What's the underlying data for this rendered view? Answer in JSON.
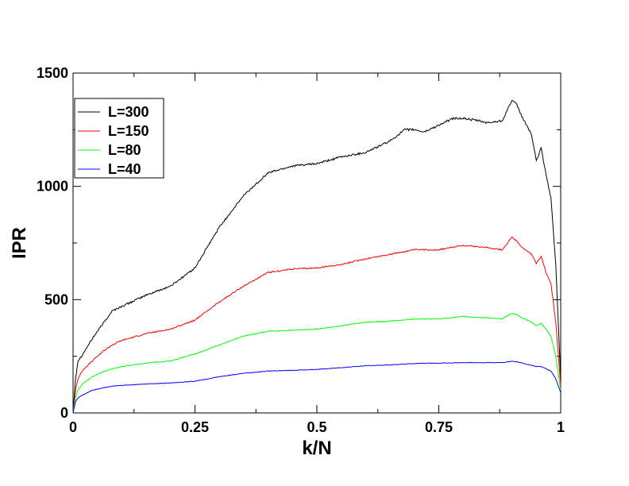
{
  "chart_data": {
    "type": "line",
    "xlabel": "k/N",
    "ylabel": "IPR",
    "xlim": [
      0,
      1
    ],
    "ylim": [
      0,
      1500
    ],
    "x_ticks": [
      0,
      0.25,
      0.5,
      0.75,
      1
    ],
    "x_tick_labels": [
      "0",
      "0.25",
      "0.5",
      "0.75",
      "1"
    ],
    "y_ticks": [
      0,
      500,
      1000,
      1500
    ],
    "y_tick_labels": [
      "0",
      "500",
      "1000",
      "1500"
    ],
    "grid": false,
    "legend_position": "top-left",
    "series": [
      {
        "name": "L=300",
        "color": "#000000",
        "x": [
          0,
          0.005,
          0.01,
          0.02,
          0.04,
          0.06,
          0.08,
          0.1,
          0.15,
          0.2,
          0.25,
          0.3,
          0.35,
          0.4,
          0.45,
          0.5,
          0.55,
          0.6,
          0.65,
          0.68,
          0.7,
          0.72,
          0.75,
          0.78,
          0.8,
          0.83,
          0.85,
          0.88,
          0.9,
          0.91,
          0.92,
          0.94,
          0.95,
          0.96,
          0.97,
          0.98,
          0.99,
          1.0
        ],
        "y": [
          0,
          150,
          230,
          260,
          330,
          390,
          450,
          470,
          520,
          560,
          640,
          820,
          960,
          1060,
          1090,
          1100,
          1130,
          1150,
          1200,
          1250,
          1250,
          1240,
          1270,
          1300,
          1300,
          1290,
          1280,
          1290,
          1380,
          1360,
          1310,
          1230,
          1110,
          1170,
          1050,
          950,
          650,
          150
        ]
      },
      {
        "name": "L=150",
        "color": "#ff0000",
        "x": [
          0,
          0.005,
          0.01,
          0.02,
          0.04,
          0.06,
          0.08,
          0.1,
          0.15,
          0.2,
          0.25,
          0.3,
          0.35,
          0.4,
          0.45,
          0.5,
          0.55,
          0.6,
          0.65,
          0.7,
          0.75,
          0.8,
          0.85,
          0.88,
          0.9,
          0.91,
          0.92,
          0.94,
          0.95,
          0.96,
          0.97,
          0.98,
          0.99,
          1.0
        ],
        "y": [
          0,
          100,
          150,
          190,
          230,
          270,
          300,
          320,
          350,
          370,
          410,
          490,
          560,
          620,
          635,
          640,
          655,
          680,
          700,
          720,
          720,
          740,
          730,
          720,
          775,
          760,
          730,
          700,
          660,
          690,
          620,
          570,
          400,
          120
        ]
      },
      {
        "name": "L=80",
        "color": "#00ff00",
        "x": [
          0,
          0.005,
          0.01,
          0.02,
          0.04,
          0.06,
          0.08,
          0.1,
          0.15,
          0.2,
          0.25,
          0.3,
          0.35,
          0.4,
          0.45,
          0.5,
          0.55,
          0.6,
          0.65,
          0.7,
          0.75,
          0.8,
          0.85,
          0.88,
          0.9,
          0.91,
          0.92,
          0.94,
          0.95,
          0.96,
          0.97,
          0.98,
          0.99,
          1.0
        ],
        "y": [
          0,
          70,
          100,
          130,
          160,
          180,
          195,
          205,
          220,
          230,
          260,
          300,
          340,
          360,
          365,
          370,
          385,
          400,
          405,
          415,
          415,
          425,
          420,
          415,
          440,
          435,
          420,
          400,
          385,
          395,
          370,
          340,
          250,
          100
        ]
      },
      {
        "name": "L=40",
        "color": "#0000ff",
        "x": [
          0,
          0.005,
          0.01,
          0.02,
          0.04,
          0.06,
          0.08,
          0.1,
          0.15,
          0.2,
          0.25,
          0.3,
          0.35,
          0.4,
          0.45,
          0.5,
          0.55,
          0.6,
          0.65,
          0.7,
          0.75,
          0.8,
          0.85,
          0.88,
          0.9,
          0.91,
          0.92,
          0.94,
          0.95,
          0.96,
          0.97,
          0.98,
          0.99,
          1.0
        ],
        "y": [
          0,
          50,
          65,
          80,
          100,
          110,
          118,
          122,
          128,
          132,
          140,
          160,
          175,
          185,
          188,
          192,
          200,
          208,
          212,
          218,
          220,
          222,
          222,
          222,
          228,
          226,
          220,
          210,
          205,
          205,
          195,
          185,
          150,
          90
        ]
      }
    ]
  }
}
